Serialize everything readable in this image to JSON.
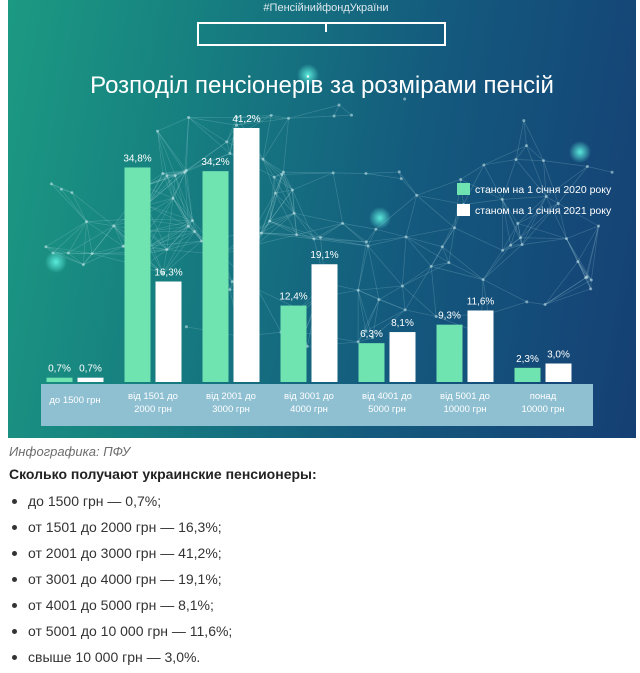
{
  "infographic": {
    "hashtag": "#ПенсійнийфондУкраїни",
    "title": "Розподіл пенсіонерів за розмірами пенсій"
  },
  "colors": {
    "series_2020": "#6fe3b0",
    "series_2021": "#ffffff",
    "label_band": "#8fc0d2"
  },
  "chart_data": {
    "type": "bar",
    "title": "Розподіл пенсіонерів за розмірами пенсій",
    "categories": [
      [
        "до 1500 грн"
      ],
      [
        "від 1501 до",
        "2000 грн"
      ],
      [
        "від 2001 до",
        "3000 грн"
      ],
      [
        "від 3001 до",
        "4000 грн"
      ],
      [
        "від 4001 до",
        "5000 грн"
      ],
      [
        "від 5001 до",
        "10000 грн"
      ],
      [
        "понад",
        "10000 грн"
      ]
    ],
    "series": [
      {
        "name": "станом на 1 січня 2020 року",
        "values": [
          0.7,
          34.8,
          34.2,
          12.4,
          6.3,
          9.3,
          2.3
        ],
        "labels": [
          "0,7%",
          "34,8%",
          "34,2%",
          "12,4%",
          "6,3%",
          "9,3%",
          "2,3%"
        ]
      },
      {
        "name": "станом на 1 січня 2021 року",
        "values": [
          0.7,
          16.3,
          41.2,
          19.1,
          8.1,
          11.6,
          3.0
        ],
        "labels": [
          "0,7%",
          "16,3%",
          "41,2%",
          "19,1%",
          "8,1%",
          "11,6%",
          "3,0%"
        ]
      }
    ],
    "ylim": [
      0,
      41.2
    ],
    "xlabel": "",
    "ylabel": "",
    "grid": false,
    "legend": "right"
  },
  "caption": "Инфографика: ПФУ",
  "summary": {
    "heading": "Сколько получают украинские пенсионеры:",
    "items": [
      "до 1500 грн — 0,7%;",
      "от 1501 до 2000 грн — 16,3%;",
      "от 2001 до 3000 грн — 41,2%;",
      "от 3001 до 4000 грн — 19,1%;",
      "от 4001 до 5000 грн — 8,1%;",
      "от 5001 до 10 000 грн — 11,6%;",
      "свыше 10 000 грн — 3,0%."
    ]
  }
}
